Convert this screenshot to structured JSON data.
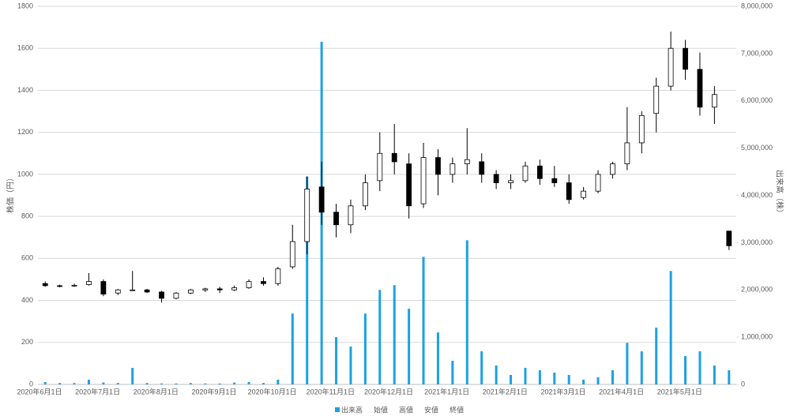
{
  "chart_data": {
    "type": "candlestick",
    "y_label": "株価（円）",
    "y2_label": "出来高（株）",
    "categories": [
      "2020年6月1日",
      null,
      null,
      null,
      "2020年7月1日",
      null,
      null,
      null,
      "2020年8月1日",
      null,
      null,
      null,
      "2020年9月1日",
      null,
      null,
      null,
      "2020年10月1日",
      null,
      null,
      null,
      "2020年11月1日",
      null,
      null,
      null,
      "2020年12月1日",
      null,
      null,
      null,
      "2021年1月1日",
      null,
      null,
      null,
      "2021年2月1日",
      null,
      null,
      null,
      "2021年3月1日",
      null,
      null,
      null,
      "2021年4月1日",
      null,
      null,
      null,
      "2021年5月1日",
      null,
      null,
      null
    ],
    "series": [
      {
        "name": "出来高",
        "color": "#1ba1e2",
        "axis": "y2",
        "values": [
          50000,
          30000,
          30000,
          100000,
          40000,
          30000,
          350000,
          30000,
          20000,
          20000,
          30000,
          20000,
          20000,
          40000,
          50000,
          30000,
          100000,
          1500000,
          4400000,
          7250000,
          1000000,
          800000,
          1500000,
          2000000,
          2100000,
          1600000,
          2700000,
          1100000,
          500000,
          3050000,
          700000,
          400000,
          200000,
          350000,
          300000,
          250000,
          200000,
          100000,
          150000,
          300000,
          880000,
          700000,
          1200000,
          2400000,
          600000,
          700000,
          400000,
          300000
        ]
      },
      {
        "name": "始値",
        "values": [
          480,
          470,
          470,
          475,
          490,
          435,
          450,
          450,
          440,
          410,
          435,
          450,
          455,
          450,
          460,
          490,
          480,
          560,
          680,
          940,
          820,
          760,
          850,
          970,
          1100,
          1050,
          860,
          1080,
          1000,
          1050,
          1060,
          1000,
          960,
          970,
          1040,
          980,
          960,
          890,
          920,
          1000,
          1050,
          1150,
          1290,
          1420,
          1600,
          1500,
          1320,
          730
        ]
      },
      {
        "name": "高値",
        "values": [
          490,
          475,
          480,
          530,
          500,
          455,
          540,
          455,
          445,
          440,
          455,
          460,
          465,
          470,
          500,
          510,
          560,
          760,
          990,
          1060,
          860,
          880,
          1000,
          1200,
          1240,
          1100,
          1150,
          1120,
          1080,
          1220,
          1100,
          1020,
          1000,
          1060,
          1070,
          1040,
          1000,
          940,
          1020,
          1060,
          1320,
          1300,
          1460,
          1680,
          1640,
          1580,
          1420,
          730
        ]
      },
      {
        "name": "安値",
        "values": [
          465,
          462,
          465,
          470,
          420,
          425,
          445,
          435,
          390,
          405,
          430,
          440,
          435,
          445,
          455,
          470,
          470,
          550,
          620,
          760,
          700,
          720,
          830,
          920,
          1000,
          790,
          840,
          900,
          960,
          1000,
          960,
          930,
          930,
          960,
          950,
          940,
          860,
          880,
          910,
          980,
          1020,
          1100,
          1200,
          1400,
          1450,
          1280,
          1240,
          640
        ]
      },
      {
        "name": "終値",
        "values": [
          470,
          468,
          472,
          490,
          430,
          450,
          450,
          440,
          410,
          435,
          450,
          455,
          450,
          460,
          490,
          480,
          550,
          680,
          930,
          820,
          760,
          850,
          960,
          1100,
          1060,
          850,
          1080,
          1000,
          1050,
          1070,
          1000,
          960,
          970,
          1040,
          980,
          960,
          880,
          920,
          1000,
          1050,
          1150,
          1280,
          1420,
          1600,
          1500,
          1320,
          1380,
          660
        ]
      }
    ],
    "ylim": [
      0,
      1800
    ],
    "yticks": [
      0,
      200,
      400,
      600,
      800,
      1000,
      1200,
      1400,
      1600,
      1800
    ],
    "y2lim": [
      0,
      8000000
    ],
    "y2ticks": [
      0,
      {
        "value": 1000000,
        "label": "1,000,000"
      },
      {
        "value": 2000000,
        "label": "2,000,000"
      },
      {
        "value": 3000000,
        "label": "3,000,000"
      },
      {
        "value": 4000000,
        "label": "4,000,000"
      },
      {
        "value": 5000000,
        "label": "5,000,000"
      },
      {
        "value": 6000000,
        "label": "6,000,000"
      },
      {
        "value": 7000000,
        "label": "7,000,000"
      },
      {
        "value": 8000000,
        "label": "8,000,000"
      }
    ],
    "grid": true
  }
}
